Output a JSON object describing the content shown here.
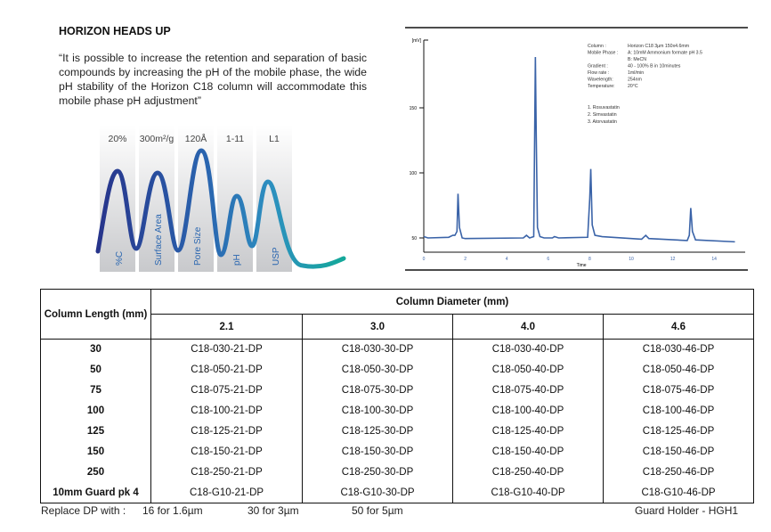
{
  "title": "HORIZON HEADS UP",
  "quote": "“It is possible to increase the retention and separation of basic compounds by increasing the pH of the mobile phase, the wide pH stability of the Horizon C18 column will accommodate this mobile phase pH adjustment”",
  "features": [
    {
      "value": "20%",
      "label": "%C"
    },
    {
      "value": "300m²/g",
      "label": "Surface Area"
    },
    {
      "value": "120Å",
      "label": "Pore Size"
    },
    {
      "value": "1-11",
      "label": "pH"
    },
    {
      "value": "L1",
      "label": "USP"
    }
  ],
  "chart_data": {
    "type": "line",
    "ylabel": "[mV]",
    "xlabel": "Time",
    "xlim": [
      0,
      15
    ],
    "ylim": [
      33,
      200
    ],
    "yticks": [
      50,
      100,
      150
    ],
    "xticks": [
      0,
      2,
      4,
      6,
      8,
      10,
      12,
      14
    ],
    "series_color": "#3a63a8",
    "series": [
      {
        "x": [
          0,
          0.2,
          1.2,
          1.4,
          1.5,
          1.6,
          1.65,
          1.72,
          1.85,
          2.0,
          4.8,
          4.95,
          5.1,
          5.3,
          5.38,
          5.42,
          5.48,
          5.6,
          5.8,
          6.2,
          6.3,
          6.5,
          7.9,
          8.0,
          8.05,
          8.12,
          8.25,
          8.6,
          10.5,
          10.7,
          10.85,
          12.7,
          12.8,
          12.87,
          12.95,
          13.1,
          15
        ],
        "y": [
          51,
          50,
          50.5,
          52,
          52,
          55,
          84,
          58,
          50,
          49.5,
          50,
          52,
          50,
          51,
          189,
          130,
          58,
          51,
          50,
          50,
          51,
          50,
          50.5,
          80,
          103,
          60,
          52,
          51,
          49,
          52,
          49.5,
          48,
          52,
          73,
          55,
          48.5,
          47
        ]
      }
    ],
    "annotations": {
      "params": [
        {
          "k": "Column :",
          "v": "Horizon C18 3µm 150x4.6mm"
        },
        {
          "k": "Mobile Phase :",
          "v": "A: 10mM Ammonium formate pH 3.5"
        },
        {
          "k": "",
          "v": "B:  MeCN"
        },
        {
          "k": "Gradient :",
          "v": "40 - 100% B in 10minutes"
        },
        {
          "k": "Flow rate :",
          "v": "1ml/min"
        },
        {
          "k": "Wavelength:",
          "v": "254nm"
        },
        {
          "k": "Temperature:",
          "v": "20°C"
        }
      ],
      "peaks": [
        "1. Rosuvastatin",
        "2. Simvastatin",
        "3. Atorvastatin"
      ]
    }
  },
  "table": {
    "row_header": "Column Length (mm)",
    "group_header": "Column Diameter (mm)",
    "diameters": [
      "2.1",
      "3.0",
      "4.0",
      "4.6"
    ],
    "rows": [
      {
        "length": "30",
        "cells": [
          "C18-030-21-DP",
          "C18-030-30-DP",
          "C18-030-40-DP",
          "C18-030-46-DP"
        ]
      },
      {
        "length": "50",
        "cells": [
          "C18-050-21-DP",
          "C18-050-30-DP",
          "C18-050-40-DP",
          "C18-050-46-DP"
        ]
      },
      {
        "length": "75",
        "cells": [
          "C18-075-21-DP",
          "C18-075-30-DP",
          "C18-075-40-DP",
          "C18-075-46-DP"
        ]
      },
      {
        "length": "100",
        "cells": [
          "C18-100-21-DP",
          "C18-100-30-DP",
          "C18-100-40-DP",
          "C18-100-46-DP"
        ]
      },
      {
        "length": "125",
        "cells": [
          "C18-125-21-DP",
          "C18-125-30-DP",
          "C18-125-40-DP",
          "C18-125-46-DP"
        ]
      },
      {
        "length": "150",
        "cells": [
          "C18-150-21-DP",
          "C18-150-30-DP",
          "C18-150-40-DP",
          "C18-150-46-DP"
        ]
      },
      {
        "length": "250",
        "cells": [
          "C18-250-21-DP",
          "C18-250-30-DP",
          "C18-250-40-DP",
          "C18-250-46-DP"
        ]
      },
      {
        "length": "10mm Guard pk 4",
        "cells": [
          "C18-G10-21-DP",
          "C18-G10-30-DP",
          "C18-G10-40-DP",
          "C18-G10-46-DP"
        ]
      }
    ]
  },
  "footer": {
    "replace_label": "Replace DP with :",
    "options": [
      "16 for 1.6µm",
      "30 for 3µm",
      "50 for 5µm"
    ],
    "guard_holder": "Guard Holder - HGH1"
  }
}
